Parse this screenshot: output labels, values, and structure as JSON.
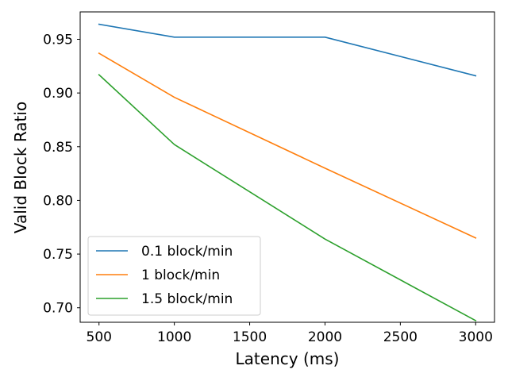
{
  "chart_data": {
    "type": "line",
    "xlabel": "Latency (ms)",
    "ylabel": "Valid Block Ratio",
    "x": [
      500,
      1000,
      2000,
      3000
    ],
    "xlim": [
      375,
      3125
    ],
    "ylim": [
      0.6865,
      0.9755
    ],
    "xticks": [
      "500",
      "1000",
      "1500",
      "2000",
      "2500",
      "3000"
    ],
    "yticks": [
      "0.70",
      "0.75",
      "0.80",
      "0.85",
      "0.90",
      "0.95"
    ],
    "grid": false,
    "legend": "lower-left",
    "series": [
      {
        "name": "0.1 block/min",
        "color": "#1f77b4",
        "values": [
          0.964,
          0.952,
          0.952,
          0.916
        ]
      },
      {
        "name": "1 block/min",
        "color": "#ff7f0e",
        "values": [
          0.937,
          0.896,
          0.83,
          0.765
        ]
      },
      {
        "name": "1.5 block/min",
        "color": "#2ca02c",
        "values": [
          0.917,
          0.852,
          0.764,
          0.688
        ]
      }
    ]
  }
}
